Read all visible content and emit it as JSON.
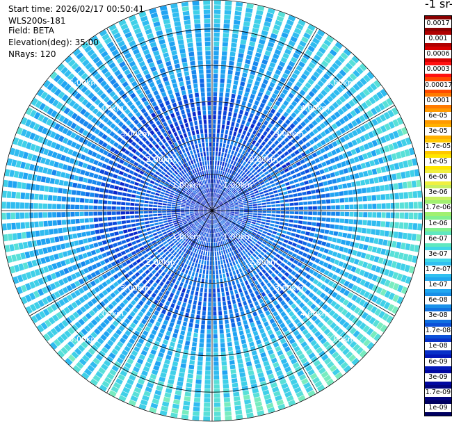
{
  "info": {
    "start_time": "Start time: 2026/02/17 00:50:41",
    "instrument": "WLS200s-181",
    "field": "Field: BETA",
    "elevation": "Elevation(deg): 35.00",
    "nrays": "NRays: 120"
  },
  "colorbar": {
    "units_label": "-1 sr-",
    "tick_labels": [
      "0.0017",
      "0.001",
      "0.0006",
      "0.0003",
      "0.00017",
      "0.0001",
      "6e-05",
      "3e-05",
      "1.7e-05",
      "1e-05",
      "6e-06",
      "3e-06",
      "1.7e-06",
      "1e-06",
      "6e-07",
      "3e-07",
      "1.7e-07",
      "1e-07",
      "6e-08",
      "3e-08",
      "1.7e-08",
      "1e-08",
      "6e-09",
      "3e-09",
      "1.7e-09",
      "1e-09"
    ],
    "colors": [
      "#8a0000",
      "#b00000",
      "#d80000",
      "#ff1010",
      "#ff4a00",
      "#ff7a00",
      "#ff9a00",
      "#ffb000",
      "#ffc800",
      "#ffe600",
      "#f0f040",
      "#c8f060",
      "#a0f070",
      "#80f090",
      "#60e8c0",
      "#40d8e8",
      "#30c0f0",
      "#20a8f0",
      "#1890e8",
      "#1070e0",
      "#0c50d8",
      "#0830c8",
      "#0418b8",
      "#0208a0",
      "#020480",
      "#000060"
    ]
  },
  "chart_data": {
    "type": "heatmap",
    "projection": "polar PPI (plan position indicator)",
    "field": "BETA",
    "elevation_deg": 35.0,
    "n_rays": 120,
    "max_range_km": 5.8,
    "range_ring_labels": [
      "1.00km",
      "2.00km",
      "3.00km",
      "4.00km",
      "5.00km"
    ],
    "range_ring_values_km": [
      1,
      2,
      3,
      4,
      5
    ],
    "colorscale_min": 1e-09,
    "colorscale_max": 0.0017,
    "colorscale": "log",
    "typical_values": {
      "near_range": 3e-08,
      "mid_range": 6e-08,
      "far_range": 1.7e-07
    }
  }
}
